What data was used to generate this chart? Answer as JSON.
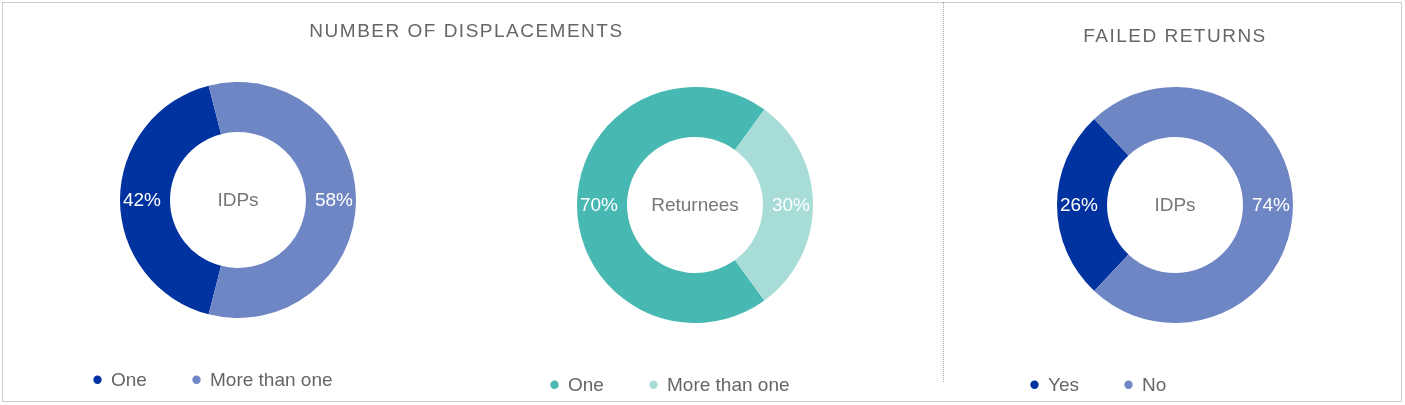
{
  "chart_data": [
    {
      "type": "donut",
      "title": "NUMBER OF DISPLACEMENTS",
      "categories": [
        "One",
        "More than one"
      ],
      "values": [
        42,
        58
      ],
      "value_labels": [
        "42%",
        "58%"
      ],
      "colors": [
        "#0033a0",
        "#6f86c4"
      ],
      "annotations": [
        "IDPs"
      ],
      "legend": "bottom"
    },
    {
      "type": "donut",
      "categories": [
        "One",
        "More than one"
      ],
      "values": [
        70,
        30
      ],
      "value_labels": [
        "70%",
        "30%"
      ],
      "colors": [
        "#48b8b2",
        "#a8ddd7"
      ],
      "annotations": [
        "Returnees"
      ],
      "legend": "bottom"
    },
    {
      "type": "donut",
      "title": "FAILED RETURNS",
      "categories": [
        "Yes",
        "No"
      ],
      "values": [
        26,
        74
      ],
      "value_labels": [
        "26%",
        "74%"
      ],
      "colors": [
        "#0033a0",
        "#6f86c4"
      ],
      "annotations": [
        "IDPs"
      ],
      "legend": "bottom"
    }
  ]
}
